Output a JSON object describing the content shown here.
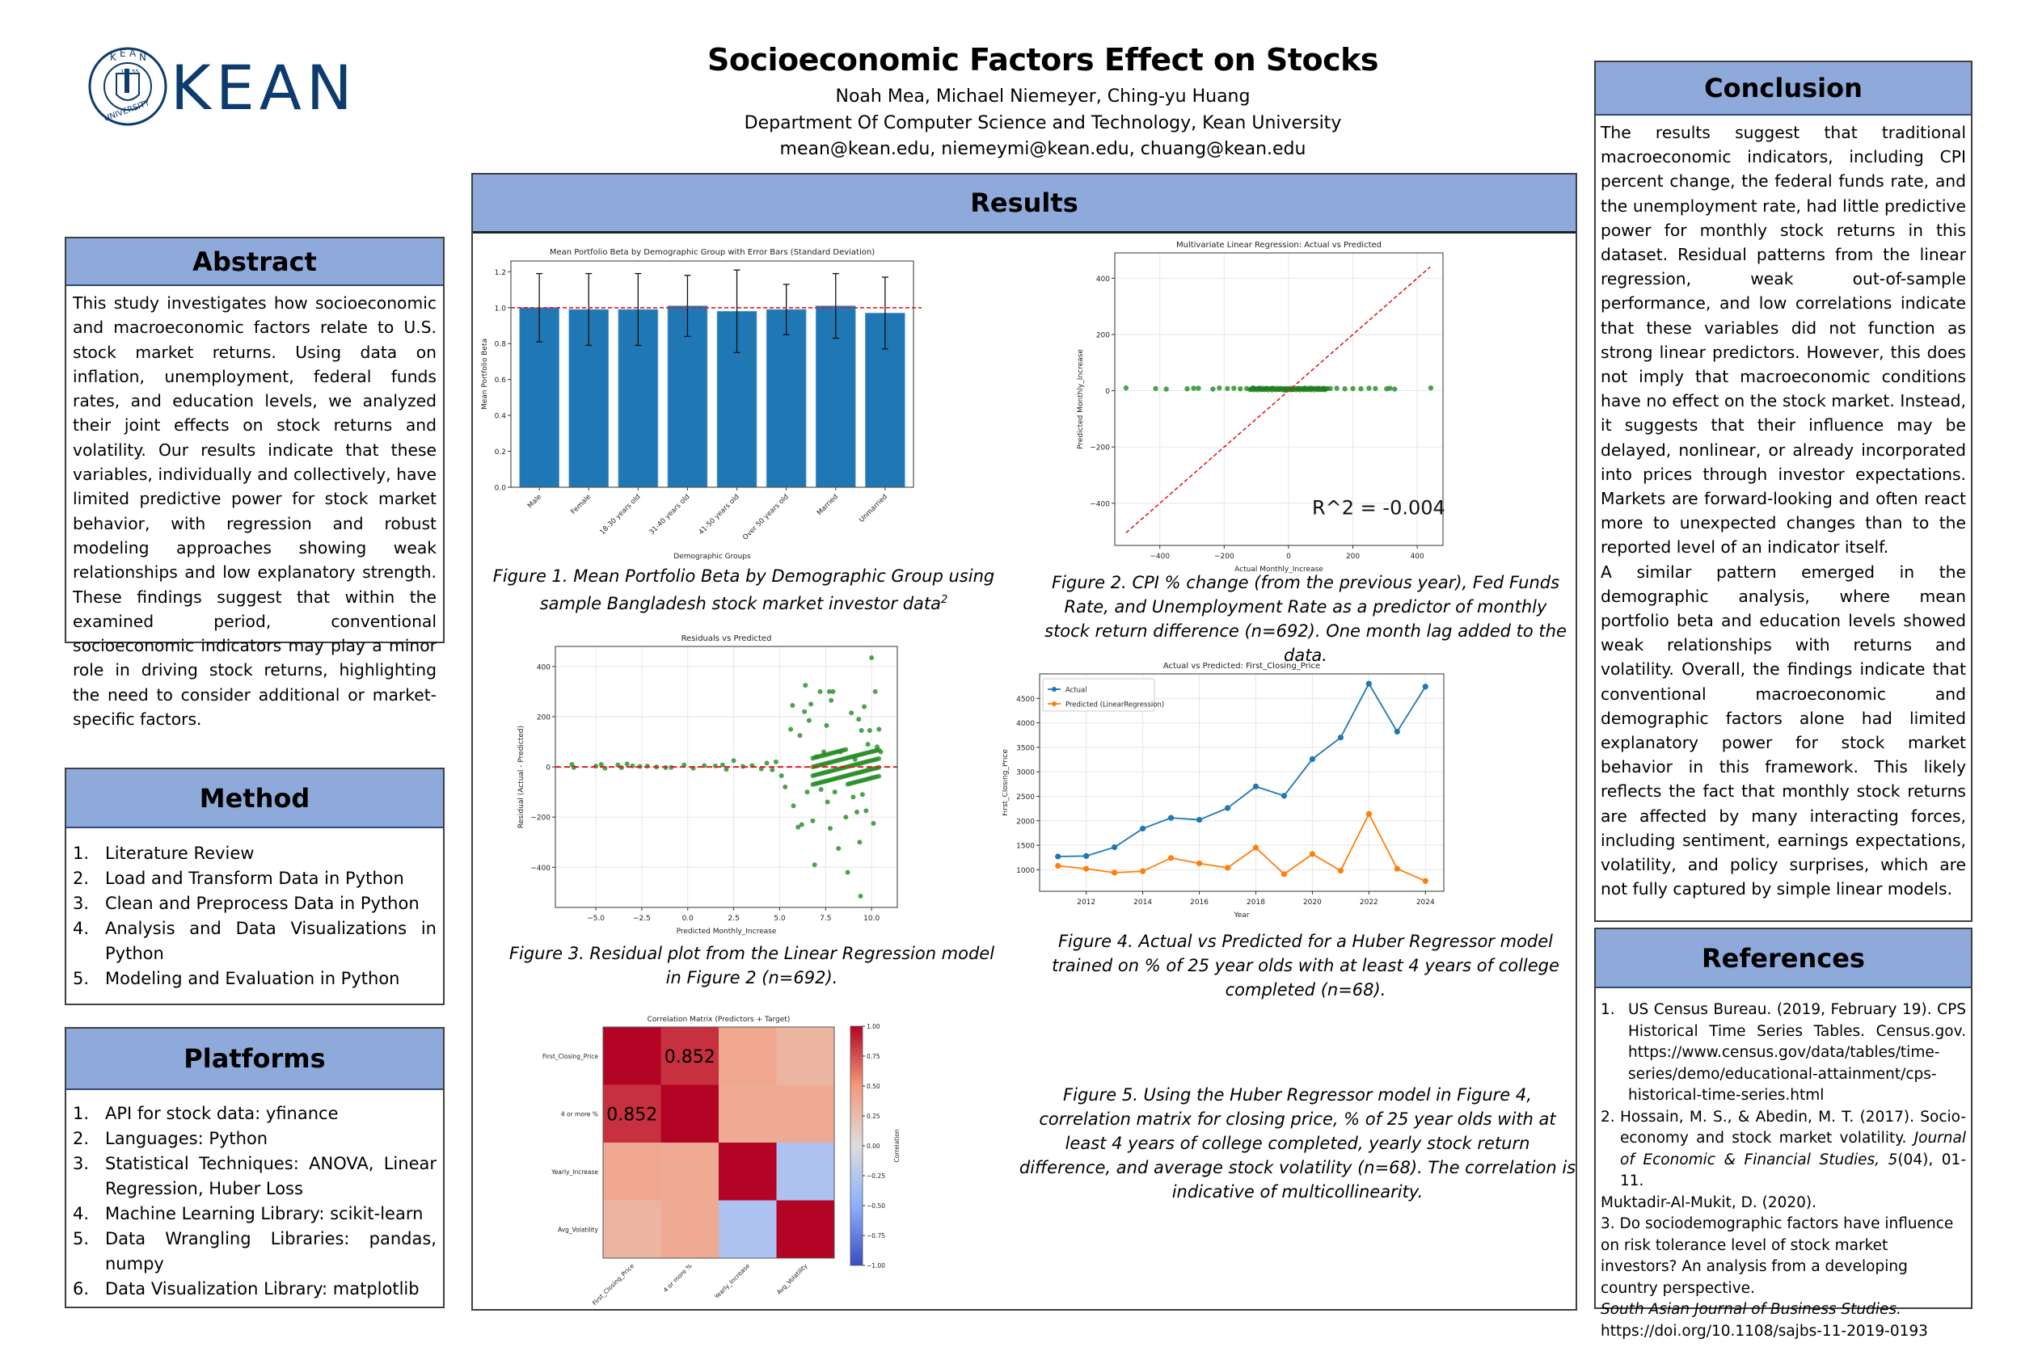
{
  "header": {
    "logo_text": "KEAN",
    "seal_text": "KEAN UNIVERSITY",
    "seal_years": [
      "18",
      "55"
    ],
    "title": "Socioeconomic Factors Effect on Stocks",
    "authors": "Noah Mea, Michael Niemeyer, Ching-yu Huang",
    "department": "Department Of Computer Science and Technology, Kean University",
    "emails": "mean@kean.edu, niemeymi@kean.edu, chuang@kean.edu"
  },
  "colors": {
    "header_fill": "#8eaadb",
    "brand_navy": "#0d3b6e",
    "bar_blue": "#1f77b4",
    "orange": "#ff7f0e",
    "scatter_green": "#228b22",
    "ref_red": "#e41a1c"
  },
  "abstract": {
    "heading": "Abstract",
    "text": "This study investigates how socioeconomic and macroeconomic factors relate to U.S. stock market returns. Using data on inflation, unemployment, federal funds rates, and education levels, we analyzed their joint effects on stock returns and volatility. Our results indicate that these variables, individually and collectively, have limited predictive power for stock market behavior, with regression and robust modeling approaches showing weak relationships and low explanatory strength. These findings suggest that within the examined period, conventional socioeconomic indicators may play a minor role in driving stock returns, highlighting the need to consider additional or market-specific factors."
  },
  "method": {
    "heading": "Method",
    "items": [
      {
        "num": "1.",
        "text": "Literature Review"
      },
      {
        "num": "2.",
        "text": "Load and Transform Data in Python"
      },
      {
        "num": "3.",
        "text": "Clean and Preprocess Data  in Python"
      },
      {
        "num": "4.",
        "text": "Analysis and Data Visualizations in Python"
      },
      {
        "num": "5.",
        "text": "Modeling and Evaluation in Python"
      }
    ]
  },
  "platforms": {
    "heading": "Platforms",
    "items": [
      {
        "num": "1.",
        "text": "API for stock data: yfinance"
      },
      {
        "num": "2.",
        "text": "Languages: Python"
      },
      {
        "num": "3.",
        "text": "Statistical Techniques: ANOVA, Linear Regression, Huber Loss"
      },
      {
        "num": "4.",
        "text": "Machine Learning Library: scikit-learn"
      },
      {
        "num": "5.",
        "text": "Data Wrangling Libraries: pandas, numpy"
      },
      {
        "num": "6.",
        "text": "Data Visualization Library: matplotlib"
      }
    ]
  },
  "results": {
    "heading": "Results",
    "captions": {
      "fig1": "Figure 1. Mean Portfolio Beta by Demographic Group using sample Bangladesh stock market investor data",
      "fig1_sup": "2",
      "fig2": "Figure 2. CPI  % change (from the previous year),  Fed Funds Rate, and Unemployment Rate as a predictor of monthly stock return difference (n=692). One month lag added to the data.",
      "fig3": "Figure 3. Residual plot from the Linear Regression model in Figure 2 (n=692).",
      "fig4": "Figure 4. Actual vs Predicted for a Huber Regressor model trained on % of 25 year olds with at least 4 years of college completed (n=68).",
      "fig5": "Figure 5. Using the Huber Regressor model in Figure 4, correlation matrix for closing price, % of 25 year olds with at least 4 years of college completed, yearly stock return difference, and average stock volatility (n=68). The correlation is indicative of multicollinearity."
    }
  },
  "conclusion": {
    "heading": "Conclusion",
    "paragraphs": [
      "The results suggest that traditional macroeconomic indicators, including CPI percent change, the federal funds rate, and the unemployment rate, had little predictive power for monthly stock returns in this dataset. Residual patterns from the linear regression, weak out-of-sample performance, and low correlations indicate that these variables did not function as strong linear predictors. However, this does not imply that macroeconomic conditions have no effect on the stock market. Instead, it suggests that their influence may be delayed, nonlinear, or already incorporated into prices through investor expectations. Markets are forward-looking and often react more to unexpected changes than to the reported level of an indicator itself.",
      "A similar pattern emerged in the demographic analysis, where mean portfolio beta and education levels showed weak relationships with returns and volatility. Overall, the findings indicate that conventional macroeconomic and demographic factors alone had limited explanatory power for stock market behavior in this framework. This likely reflects the fact that monthly stock returns are affected by many interacting forces, including sentiment, earnings expectations, volatility, and policy surprises, which are not fully captured by simple linear models."
    ]
  },
  "references": {
    "heading": "References",
    "ref1_num": "1.",
    "ref1_text": "US Census Bureau. (2019, February 19). CPS Historical Time Series Tables. Census.gov. https://www.census.gov/data/tables/time-series/demo/educational-attainment/cps-historical-time-series.html",
    "ref2_num": "2.",
    "ref2_a": "Hossain, M. S., & Abedin, M. T. (2017). Socio-economy and stock market volatility. ",
    "ref2_journal": "Journal of Economic & Financial Studies, 5",
    "ref2_b": "(04), 01-11.",
    "ref3_author": "Muktadir-Al-Mukit, D. (2020).",
    "ref3_title": "3. Do sociodemographic factors have influence on risk tolerance level of stock market investors? An analysis from a developing country perspective.",
    "ref3_journal": "South Asian Journal of Business Studies.",
    "ref3_doi": "https://doi.org/10.1108/sajbs-11-2019-0193"
  },
  "chart_data": [
    {
      "id": "fig1",
      "type": "bar",
      "title": "Mean Portfolio Beta by Demographic Group with Error Bars (Standard Deviation)",
      "xlabel": "Demographic Groups",
      "ylabel": "Mean Portfolio Beta",
      "categories": [
        "Male",
        "Female",
        "18-30 years old",
        "31-40 years old",
        "41-50 years old",
        "Over 50 years old",
        "Married",
        "Unmarried"
      ],
      "values": [
        1.0,
        0.99,
        0.99,
        1.01,
        0.98,
        0.99,
        1.01,
        0.97
      ],
      "error": [
        0.19,
        0.2,
        0.2,
        0.17,
        0.23,
        0.14,
        0.18,
        0.2
      ],
      "reference_line": 1.0,
      "ylim": [
        0,
        1.26
      ],
      "yticks": [
        0.0,
        0.2,
        0.4,
        0.6,
        0.8,
        1.0,
        1.2
      ],
      "grid": false
    },
    {
      "id": "fig2",
      "type": "scatter",
      "title": "Multivariate Linear Regression: Actual vs Predicted",
      "xlabel": "Actual Monthly_Increase",
      "ylabel": "Predicted Monthly_Increase",
      "xlim": [
        -540,
        480
      ],
      "ylim": [
        -550,
        490
      ],
      "xticks": [
        -400,
        -200,
        0,
        200,
        400
      ],
      "yticks": [
        -400,
        -200,
        0,
        200,
        400
      ],
      "annotation": "R^2 = -0.004",
      "reference_line": {
        "from": [
          -505,
          -505
        ],
        "to": [
          440,
          440
        ]
      },
      "points_note": "All predicted values lie near 0 across actual values from about -505 to 440",
      "x": [
        -505,
        -413,
        -380,
        -315,
        -295,
        -280,
        -235,
        -215,
        -190,
        -170,
        -150,
        -130,
        -110,
        -90,
        -70,
        -50,
        -30,
        -10,
        10,
        30,
        50,
        70,
        90,
        110,
        130,
        150,
        175,
        200,
        225,
        250,
        270,
        305,
        315,
        330,
        442
      ],
      "y": [
        10,
        8,
        6,
        7,
        9,
        9,
        6,
        10,
        8,
        9,
        7,
        8,
        10,
        9,
        8,
        9,
        6,
        2,
        4,
        8,
        9,
        9,
        8,
        7,
        8,
        9,
        7,
        8,
        7,
        9,
        8,
        7,
        9,
        6,
        10
      ],
      "grid": true
    },
    {
      "id": "fig3",
      "type": "scatter",
      "title": "Residuals vs Predicted",
      "xlabel": "Predicted Monthly_Increase",
      "ylabel": "Residual (Actual - Predicted)",
      "xlim": [
        -7.2,
        11.4
      ],
      "ylim": [
        -560,
        480
      ],
      "xticks": [
        -5.0,
        -2.5,
        0.0,
        2.5,
        5.0,
        7.5,
        10.0
      ],
      "yticks": [
        -400,
        -200,
        0,
        200,
        400
      ],
      "reference_line": 0,
      "x": [
        -6.3,
        -6.2,
        -5.0,
        -4.7,
        -4.5,
        -3.8,
        -3.6,
        -3.3,
        -3.0,
        -2.6,
        -2.2,
        -1.7,
        -1.2,
        -0.9,
        -0.2,
        0.3,
        0.9,
        1.5,
        1.9,
        2.1,
        2.5,
        3.0,
        3.5,
        4.0,
        4.3,
        4.6,
        4.8,
        5.1,
        5.3,
        5.6,
        5.7,
        5.75,
        6.0,
        6.1,
        6.2,
        6.35,
        6.4,
        6.5,
        6.6,
        6.7,
        6.8,
        6.9,
        7.0,
        7.2,
        7.25,
        7.4,
        7.55,
        7.6,
        7.7,
        7.75,
        7.8,
        7.9,
        8.0,
        8.2,
        8.3,
        8.6,
        8.7,
        8.9,
        9.0,
        9.1,
        9.2,
        9.3,
        9.35,
        9.4,
        9.45,
        9.5,
        9.6,
        9.7,
        9.8,
        9.9,
        10.0,
        10.1,
        10.2,
        10.3,
        10.4,
        10.5
      ],
      "y": [
        10,
        -2,
        3,
        10,
        -5,
        8,
        -3,
        12,
        4,
        2,
        3,
        0,
        -3,
        -2,
        8,
        -5,
        5,
        4,
        8,
        -10,
        25,
        2,
        5,
        -8,
        15,
        -12,
        20,
        -35,
        -80,
        150,
        245,
        -155,
        -240,
        125,
        -230,
        220,
        325,
        -100,
        185,
        250,
        -215,
        -390,
        40,
        300,
        -90,
        60,
        165,
        -140,
        300,
        -245,
        265,
        300,
        -100,
        -325,
        60,
        -200,
        -420,
        215,
        -120,
        30,
        -180,
        190,
        -300,
        -515,
        145,
        -110,
        240,
        -175,
        90,
        145,
        435,
        -225,
        300,
        80,
        150,
        60
      ],
      "grid": true
    },
    {
      "id": "fig4",
      "type": "line",
      "title": "Actual vs Predicted: First_Closing_Price",
      "xlabel": "Year",
      "ylabel": "First_Closing_Price",
      "x": [
        2011,
        2012,
        2013,
        2014,
        2015,
        2016,
        2017,
        2018,
        2019,
        2020,
        2021,
        2022,
        2023,
        2024
      ],
      "series": [
        {
          "name": "Actual",
          "color": "#1f77b4",
          "values": [
            1270,
            1280,
            1460,
            1840,
            2060,
            2020,
            2260,
            2700,
            2510,
            3260,
            3700,
            4800,
            3820,
            4740
          ]
        },
        {
          "name": "Predicted (LinearRegression)",
          "color": "#ff7f0e",
          "values": [
            1080,
            1020,
            940,
            970,
            1240,
            1130,
            1040,
            1450,
            910,
            1320,
            980,
            2140,
            1020,
            770
          ]
        }
      ],
      "xlim": [
        2010.35,
        2024.65
      ],
      "ylim": [
        560,
        5000
      ],
      "xticks": [
        2012,
        2014,
        2016,
        2018,
        2020,
        2022,
        2024
      ],
      "yticks": [
        1000,
        1500,
        2000,
        2500,
        3000,
        3500,
        4000,
        4500
      ],
      "legend_position": "upper left",
      "grid": true
    },
    {
      "id": "fig5",
      "type": "heatmap",
      "title": "Correlation Matrix (Predictors + Target)",
      "labels": [
        "First_Closing_Price",
        "4 or more %",
        "Yearly_Increase",
        "Avg_Volatility"
      ],
      "matrix": [
        [
          1.0,
          0.852,
          0.4,
          0.3
        ],
        [
          0.852,
          1.0,
          0.38,
          0.38
        ],
        [
          0.4,
          0.38,
          1.0,
          -0.3
        ],
        [
          0.3,
          0.38,
          -0.3,
          1.0
        ]
      ],
      "annotations": [
        {
          "row": 0,
          "col": 1,
          "text": "0.852"
        },
        {
          "row": 1,
          "col": 0,
          "text": "0.852"
        }
      ],
      "colorbar_label": "Correlation",
      "colorbar_ticks": [
        "1.00",
        "0.75",
        "0.50",
        "0.25",
        "0.00",
        "−0.25",
        "−0.50",
        "−0.75",
        "−1.00"
      ],
      "vmin": -1,
      "vmax": 1
    }
  ]
}
